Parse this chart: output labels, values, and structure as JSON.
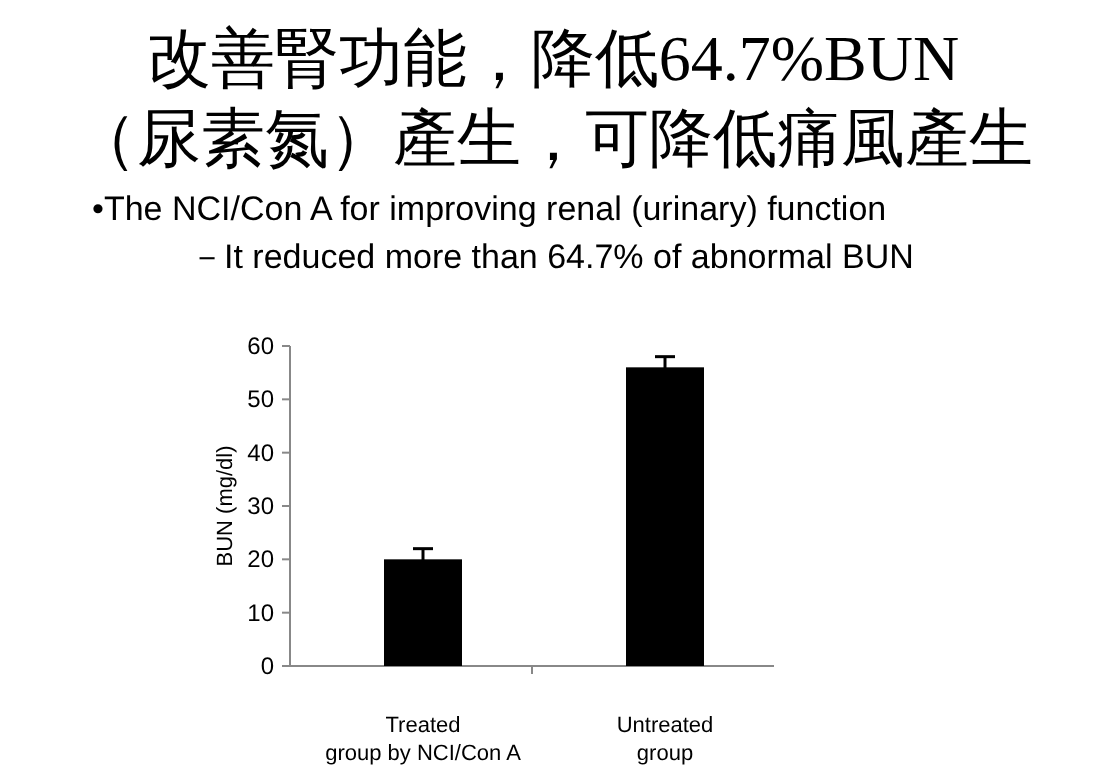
{
  "chart_data": {
    "type": "bar",
    "title": "改善腎功能，降低64.7%BUN\n（尿素氮）產生，可降低痛風產生",
    "subtitle": "•The NCI/Con A for improving renal (urinary) function",
    "annotations": [
      "－It reduced more than 64.7% of abnormal BUN"
    ],
    "ylabel": "BUN (mg/dl)",
    "categories": [
      "Treated\ngroup by NCI/Con A",
      "Untreated\ngroup"
    ],
    "values": [
      20,
      56
    ],
    "errors": [
      2,
      2
    ],
    "color": "#000000",
    "ylim": [
      0,
      60
    ],
    "yticks": [
      0,
      10,
      20,
      30,
      40,
      50,
      60
    ],
    "grid": false
  }
}
